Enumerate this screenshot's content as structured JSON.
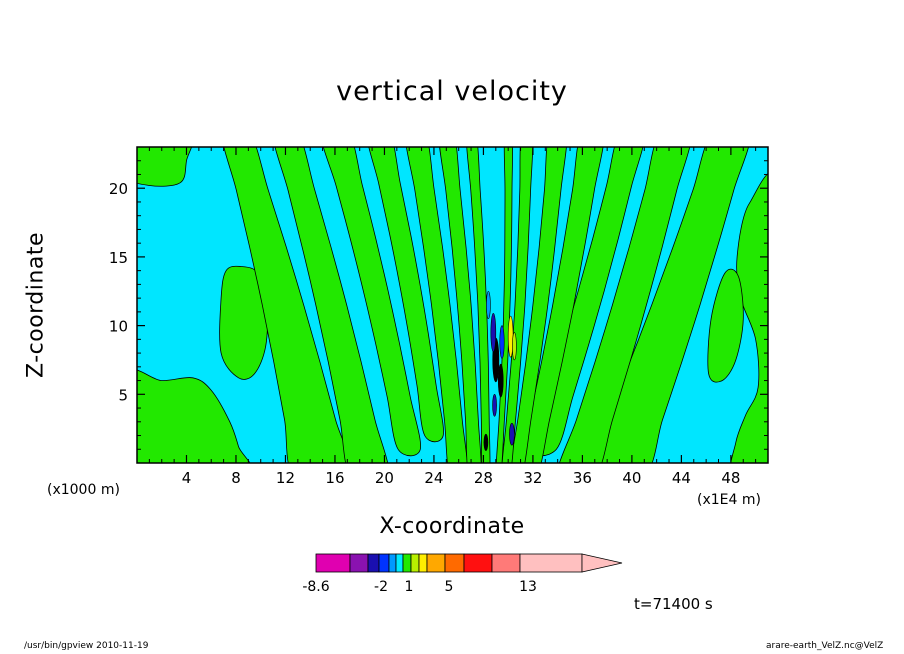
{
  "chart_data": {
    "type": "heatmap",
    "title": "vertical velocity",
    "xlabel": "X-coordinate",
    "ylabel": "Z-coordinate",
    "x_scale_label": "(x1E4 m)",
    "y_scale_label": "(x1000 m)",
    "xlim": [
      0,
      51
    ],
    "ylim": [
      0,
      23
    ],
    "x_ticks": [
      4,
      8,
      12,
      16,
      20,
      24,
      28,
      32,
      36,
      40,
      44,
      48
    ],
    "y_ticks": [
      5,
      10,
      15,
      20
    ],
    "annotation": "t=71400 s",
    "colorbar": {
      "levels_labeled": [
        "-8.6",
        "-2",
        "1",
        "5",
        "13"
      ],
      "label_positions": [
        -8.6,
        -2,
        1,
        5,
        13
      ],
      "bins": [
        {
          "from": -8.6,
          "to": -7,
          "color": "#e000b0"
        },
        {
          "from": -7,
          "to": -5,
          "color": "#8a12b0"
        },
        {
          "from": -5,
          "to": -3.5,
          "color": "#1a0fb0"
        },
        {
          "from": -3.5,
          "to": -2,
          "color": "#0033ff"
        },
        {
          "from": -2,
          "to": -1,
          "color": "#0099ff"
        },
        {
          "from": -1,
          "to": 0,
          "color": "#00eaff"
        },
        {
          "from": 0,
          "to": 1,
          "color": "#22e800"
        },
        {
          "from": 1,
          "to": 2,
          "color": "#b8f000"
        },
        {
          "from": 2,
          "to": 3,
          "color": "#ffee00"
        },
        {
          "from": 3,
          "to": 5,
          "color": "#ffa800"
        },
        {
          "from": 5,
          "to": 7,
          "color": "#ff6a00"
        },
        {
          "from": 7,
          "to": 10,
          "color": "#ff1010"
        },
        {
          "from": 10,
          "to": 13,
          "color": "#ff7a78"
        },
        {
          "from": 13,
          "to": 18,
          "color": "#ffc0c0"
        }
      ],
      "extend": "max"
    },
    "background_color": "#00e6ff",
    "positive_color": "#22e800"
  },
  "footer": {
    "left": "/usr/bin/gpview   2010-11-19",
    "right": "arare-earth_VelZ.nc@VelZ"
  }
}
